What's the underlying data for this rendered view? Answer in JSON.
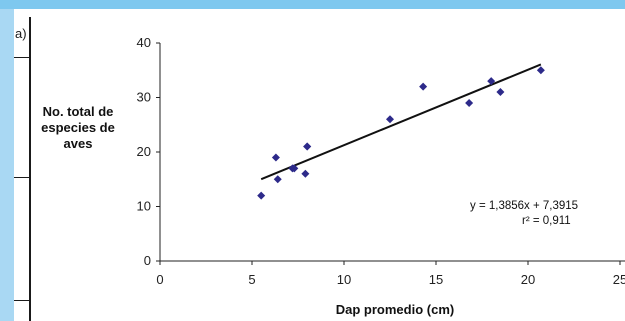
{
  "panel_label": "a)",
  "chart_data": {
    "type": "scatter",
    "title": "",
    "xlabel": "Dap promedio (cm)",
    "ylabel_lines": [
      "No. total de",
      "especies de",
      "aves"
    ],
    "xlim": [
      0,
      25
    ],
    "ylim": [
      0,
      40
    ],
    "x_ticks": [
      "0",
      "5",
      "10",
      "15",
      "20",
      "25"
    ],
    "y_ticks": [
      "0",
      "10",
      "20",
      "30",
      "40"
    ],
    "points": [
      {
        "x": 5.5,
        "y": 12
      },
      {
        "x": 6.3,
        "y": 19
      },
      {
        "x": 6.4,
        "y": 15
      },
      {
        "x": 7.2,
        "y": 17
      },
      {
        "x": 7.3,
        "y": 17
      },
      {
        "x": 7.9,
        "y": 16
      },
      {
        "x": 8.0,
        "y": 21
      },
      {
        "x": 8.0,
        "y": 21
      },
      {
        "x": 12.5,
        "y": 26
      },
      {
        "x": 14.3,
        "y": 32
      },
      {
        "x": 16.8,
        "y": 29
      },
      {
        "x": 18.0,
        "y": 33
      },
      {
        "x": 18.5,
        "y": 31
      },
      {
        "x": 20.7,
        "y": 35
      }
    ],
    "trendline": {
      "slope": 1.3856,
      "intercept": 7.3915,
      "x_range": [
        5.5,
        20.7
      ]
    },
    "equation": "y = 1,3856x + 7,3915",
    "r2_label": "r² = 0,911",
    "marker_color": "#2d2a8a",
    "line_color": "#111111",
    "grid": false,
    "legend": "none"
  }
}
